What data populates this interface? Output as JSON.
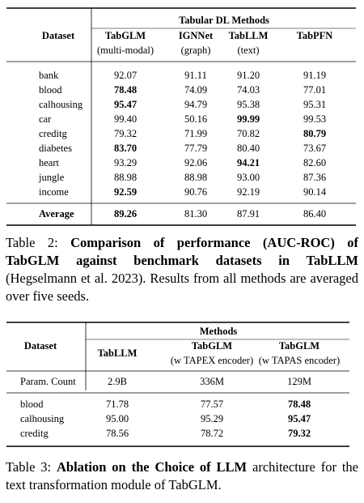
{
  "table1": {
    "group_header": "Tabular DL Methods",
    "row_header": "Dataset",
    "columns": [
      {
        "name": "TabGLM",
        "sub": "(multi-modal)"
      },
      {
        "name": "IGNNet",
        "sub": "(graph)"
      },
      {
        "name": "TabLLM",
        "sub": "(text)"
      },
      {
        "name": "TabPFN"
      }
    ],
    "rows": [
      {
        "label": "bank",
        "cells": [
          "92.07",
          "91.11",
          "91.20",
          "91.19"
        ]
      },
      {
        "label": "blood",
        "cells": [
          "78.48",
          "74.09",
          "74.03",
          "77.01"
        ]
      },
      {
        "label": "calhousing",
        "cells": [
          "95.47",
          "94.79",
          "95.38",
          "95.31"
        ]
      },
      {
        "label": "car",
        "cells": [
          "99.40",
          "50.16",
          "99.99",
          "99.53"
        ]
      },
      {
        "label": "creditg",
        "cells": [
          "79.32",
          "71.99",
          "70.82",
          "80.79"
        ]
      },
      {
        "label": "diabetes",
        "cells": [
          "83.70",
          "77.79",
          "80.40",
          "73.67"
        ]
      },
      {
        "label": "heart",
        "cells": [
          "93.29",
          "92.06",
          "94.21",
          "82.60"
        ]
      },
      {
        "label": "jungle",
        "cells": [
          "88.98",
          "88.98",
          "93.00",
          "87.36"
        ]
      },
      {
        "label": "income",
        "cells": [
          "92.59",
          "90.76",
          "92.19",
          "90.14"
        ]
      }
    ],
    "bold": [
      [
        1,
        0
      ],
      [
        2,
        0
      ],
      [
        3,
        2
      ],
      [
        4,
        3
      ],
      [
        5,
        0
      ],
      [
        6,
        2
      ],
      [
        8,
        0
      ]
    ],
    "average": {
      "label": "Average",
      "cells": [
        "89.26",
        "81.30",
        "87.91",
        "86.40"
      ],
      "bold": 0
    }
  },
  "caption1": {
    "label": "Table 2:",
    "bold": "Comparison of performance (AUC-ROC) of TabGLM against benchmark datasets in TabLLM",
    "text": "(Hegselmann et al. 2023). Results from all methods are averaged over five seeds."
  },
  "table2": {
    "group_header": "Methods",
    "row_header": "Dataset",
    "columns": [
      {
        "name": "TabLLM"
      },
      {
        "name": "TabGLM",
        "sub": "(w TAPEX encoder)"
      },
      {
        "name": "TabGLM",
        "sub": "(w TAPAS encoder)"
      }
    ],
    "param_row": {
      "label": "Param. Count",
      "cells": [
        "2.9B",
        "336M",
        "129M"
      ]
    },
    "rows": [
      {
        "label": "blood",
        "cells": [
          "71.78",
          "77.57",
          "78.48"
        ]
      },
      {
        "label": "calhousing",
        "cells": [
          "95.00",
          "95.29",
          "95.47"
        ]
      },
      {
        "label": "creditg",
        "cells": [
          "78.56",
          "78.72",
          "79.32"
        ]
      }
    ],
    "bold_column": 2
  },
  "caption2": {
    "label": "Table 3:",
    "bold": "Ablation on the Choice of LLM",
    "text": "architecture for the text transformation module of TabGLM."
  }
}
